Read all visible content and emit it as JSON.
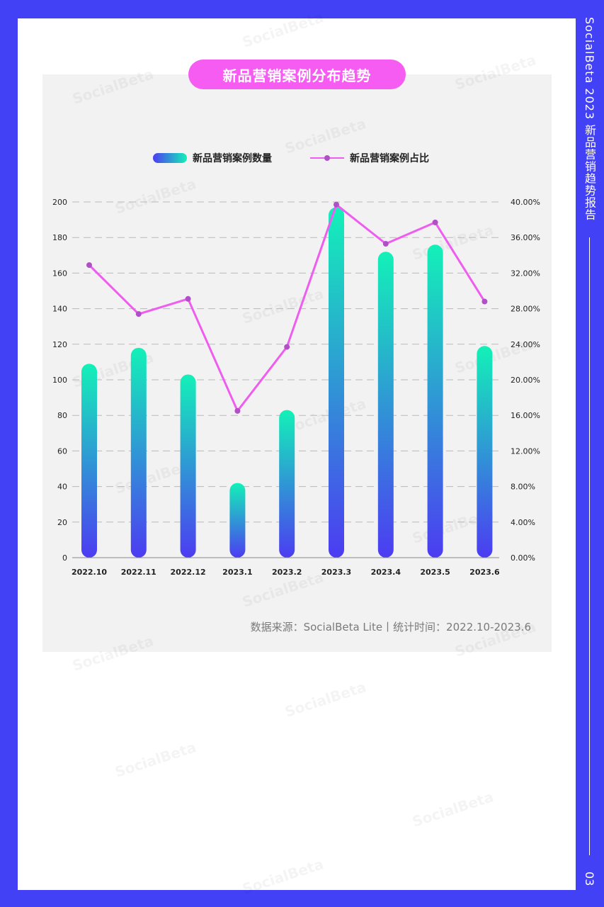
{
  "side_header": {
    "title": "SocialBeta 2023 新品营销趋势报告",
    "page_number": "03"
  },
  "watermark": "SocialBeta",
  "chart_data": {
    "type": "bar",
    "title": "新品营销案例分布趋势",
    "categories": [
      "2022.10",
      "2022.11",
      "2022.12",
      "2023.1",
      "2023.2",
      "2023.3",
      "2023.4",
      "2023.5",
      "2023.6"
    ],
    "series": [
      {
        "name": "新品营销案例数量",
        "type": "bar",
        "axis": "left",
        "values": [
          109,
          118,
          103,
          42,
          83,
          197,
          172,
          176,
          119
        ]
      },
      {
        "name": "新品营销案例占比",
        "type": "line",
        "axis": "right",
        "values": [
          32.9,
          27.4,
          29.1,
          16.5,
          23.7,
          39.7,
          35.3,
          37.7,
          28.8
        ]
      }
    ],
    "y_left": {
      "min": 0,
      "max": 200,
      "step": 20,
      "ticks": [
        "0",
        "20",
        "40",
        "60",
        "80",
        "100",
        "120",
        "140",
        "160",
        "180",
        "200"
      ]
    },
    "y_right": {
      "min": 0,
      "max": 40,
      "step": 4,
      "ticks": [
        "0.00%",
        "4.00%",
        "8.00%",
        "12.00%",
        "16.00%",
        "20.00%",
        "24.00%",
        "28.00%",
        "32.00%",
        "36.00%",
        "40.00%"
      ]
    },
    "grid": true,
    "legend": "top-center",
    "colors": {
      "bar_top": "#13f1b8",
      "bar_bottom": "#4c3cf2",
      "line": "#ee5cf0",
      "marker": "#b04fc6"
    },
    "source": "数据来源：SocialBeta Lite丨统计时间：2022.10-2023.6"
  }
}
